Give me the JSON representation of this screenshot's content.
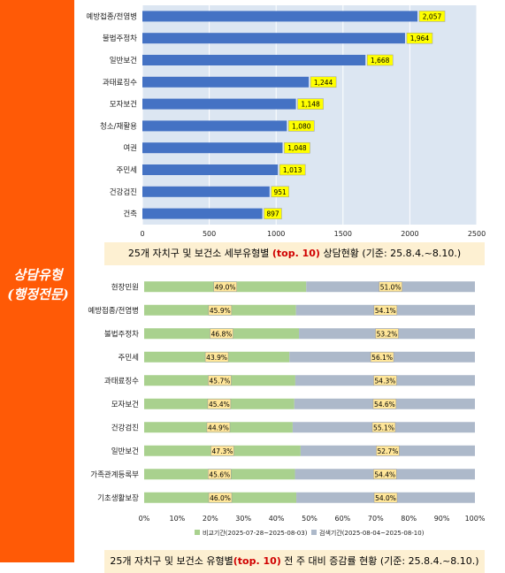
{
  "sidebar": {
    "label_line1": "상담유형",
    "label_line2": "(행정전문)",
    "color": "#ff5a06"
  },
  "captions": {
    "chart1": {
      "pre": "25개 자치구 및 보건소 세부유형별",
      "highlight": "(top. 10)",
      "post": " 상담현황  (기준: 25.8.4.~8.10.)"
    },
    "chart2": {
      "pre": "25개 자치구 및 보건소 유형별",
      "highlight": "(top. 10)",
      "post": " 전 주 대비 증감률 현황 (기준: 25.8.4.~8.10.)"
    }
  },
  "chart_data": [
    {
      "type": "bar",
      "orientation": "horizontal",
      "categories": [
        "예방접종/전염병",
        "불법주정차",
        "일반보건",
        "과태료징수",
        "모자보건",
        "청소/재활용",
        "여권",
        "주민세",
        "건강검진",
        "건축"
      ],
      "values": [
        2057,
        1964,
        1668,
        1244,
        1148,
        1080,
        1048,
        1013,
        951,
        897
      ],
      "value_labels": [
        "2,057",
        "1,964",
        "1,668",
        "1,244",
        "1,148",
        "1,080",
        "1,048",
        "1,013",
        "951",
        "897"
      ],
      "xlim": [
        0,
        2500
      ],
      "xticks": [
        "0",
        "500",
        "1000",
        "1500",
        "2000",
        "2500"
      ],
      "colors": {
        "bar": "#4472c4",
        "plot_bg": "#dce6f2",
        "label_bg": "#ffff00"
      }
    },
    {
      "type": "bar",
      "orientation": "horizontal",
      "stacked": "percent",
      "categories": [
        "현장민원",
        "예방접종/전염병",
        "불법주정차",
        "주민세",
        "과태료징수",
        "모자보건",
        "건강검진",
        "일반보건",
        "가족관계등록부",
        "기초생활보장"
      ],
      "series": [
        {
          "name": "비교기간(2025-07-28~2025-08-03)",
          "values": [
            49.0,
            45.9,
            46.8,
            43.9,
            45.7,
            45.4,
            44.9,
            47.3,
            45.6,
            46.0
          ],
          "labels": [
            "49.0%",
            "45.9%",
            "46.8%",
            "43.9%",
            "45.7%",
            "45.4%",
            "44.9%",
            "47.3%",
            "45.6%",
            "46.0%"
          ]
        },
        {
          "name": "검색기간(2025-08-04~2025-08-10)",
          "values": [
            51.0,
            54.1,
            53.2,
            56.1,
            54.3,
            54.6,
            55.1,
            52.7,
            54.4,
            54.0
          ],
          "labels": [
            "51.0%",
            "54.1%",
            "53.2%",
            "56.1%",
            "54.3%",
            "54.6%",
            "55.1%",
            "52.7%",
            "54.4%",
            "54.0%"
          ]
        }
      ],
      "xlim": [
        0,
        100
      ],
      "xticks": [
        "0%",
        "10%",
        "20%",
        "30%",
        "40%",
        "50%",
        "60%",
        "70%",
        "80%",
        "90%",
        "100%"
      ],
      "legend": "bottom",
      "colors": {
        "series1": "#a9d18e",
        "series2": "#adb9ca",
        "label_bg": "#ffe699"
      }
    }
  ]
}
